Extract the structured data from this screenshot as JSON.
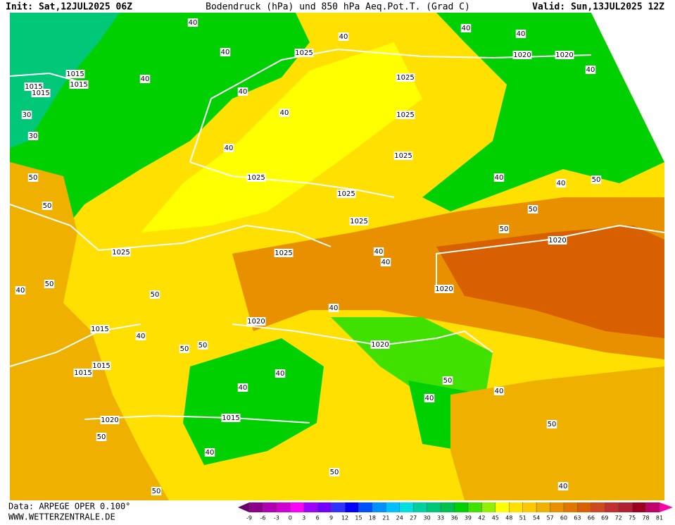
{
  "header": {
    "init": "Init: Sat,12JUL2025 06Z",
    "title": "Bodendruck (hPa) und 850 hPa Aeq.Pot.T. (Grad C)",
    "valid": "Valid: Sun,13JUL2025 12Z"
  },
  "footer": {
    "data": "Data: ARPEGE OPER 0.100°",
    "website": "WWW.WETTERZENTRALE.DE"
  },
  "map": {
    "isobar_labels": [
      1015,
      1015,
      1015,
      1025,
      1020,
      1020,
      1025,
      1025,
      1025,
      1025,
      1025,
      1025,
      1025,
      1025,
      1020,
      1020,
      1020,
      1020,
      1015,
      1015,
      1015,
      1020,
      1015,
      1015
    ],
    "thetae_labels": [
      40,
      40,
      40,
      40,
      40,
      30,
      30,
      40,
      40,
      40,
      50,
      50,
      50,
      40,
      40,
      50,
      50,
      50,
      40,
      40,
      40,
      50,
      50,
      40,
      40,
      40,
      50,
      40,
      50,
      40,
      50,
      50,
      40,
      40,
      50,
      40,
      40,
      50,
      40
    ]
  },
  "colorbar": {
    "ticks": [
      -9,
      -6,
      -3,
      0,
      3,
      6,
      9,
      12,
      15,
      18,
      21,
      24,
      27,
      30,
      33,
      36,
      39,
      42,
      45,
      48,
      51,
      54,
      57,
      60,
      63,
      66,
      69,
      72,
      75,
      78,
      81
    ],
    "colors": [
      "#6a006a",
      "#8a008a",
      "#b000b0",
      "#d000d0",
      "#ff00ff",
      "#a000ff",
      "#7000ff",
      "#3030ff",
      "#0000ff",
      "#0050ff",
      "#0090ff",
      "#00c0ff",
      "#00e0e0",
      "#00d0a0",
      "#00c878",
      "#00c050",
      "#00d000",
      "#40e000",
      "#90f000",
      "#ffff00",
      "#ffe000",
      "#ffc800",
      "#f0b000",
      "#e89000",
      "#e07800",
      "#d86000",
      "#d04820",
      "#c03030",
      "#b02030",
      "#a00020",
      "#c0006a",
      "#ff00aa"
    ]
  }
}
